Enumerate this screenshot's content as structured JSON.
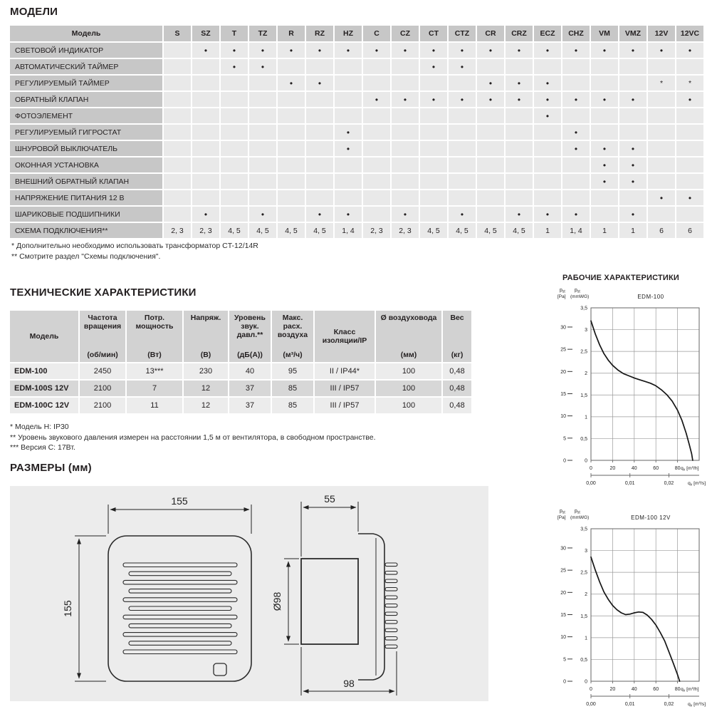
{
  "models_section": {
    "heading": "МОДЕЛИ",
    "footnotes": [
      "* Дополнительно необходимо использовать трансформатор CT-12/14R",
      "** Смотрите раздел \"Схемы подключения\"."
    ]
  },
  "models_table": {
    "header": [
      "Модель",
      "S",
      "SZ",
      "T",
      "TZ",
      "R",
      "RZ",
      "HZ",
      "C",
      "CZ",
      "CT",
      "CTZ",
      "CR",
      "CRZ",
      "ECZ",
      "CHZ",
      "VM",
      "VMZ",
      "12V",
      "12VC"
    ],
    "rows": [
      {
        "label": "СВЕТОВОЙ ИНДИКАТОР",
        "cells": [
          "",
          "•",
          "•",
          "•",
          "•",
          "•",
          "•",
          "•",
          "•",
          "•",
          "•",
          "•",
          "•",
          "•",
          "•",
          "•",
          "•",
          "•",
          "•"
        ]
      },
      {
        "label": "АВТОМАТИЧЕСКИЙ ТАЙМЕР",
        "cells": [
          "",
          "",
          "•",
          "•",
          "",
          "",
          "",
          "",
          "",
          "•",
          "•",
          "",
          "",
          "",
          "",
          "",
          "",
          "",
          ""
        ]
      },
      {
        "label": "РЕГУЛИРУЕМЫЙ ТАЙМЕР",
        "cells": [
          "",
          "",
          "",
          "",
          "•",
          "•",
          "",
          "",
          "",
          "",
          "",
          "•",
          "•",
          "•",
          "",
          "",
          "",
          "*",
          "*"
        ]
      },
      {
        "label": "ОБРАТНЫЙ КЛАПАН",
        "cells": [
          "",
          "",
          "",
          "",
          "",
          "",
          "",
          "•",
          "•",
          "•",
          "•",
          "•",
          "•",
          "•",
          "•",
          "•",
          "•",
          "",
          "•"
        ]
      },
      {
        "label": "ФОТОЭЛЕМЕНТ",
        "cells": [
          "",
          "",
          "",
          "",
          "",
          "",
          "",
          "",
          "",
          "",
          "",
          "",
          "",
          "•",
          "",
          "",
          "",
          "",
          ""
        ]
      },
      {
        "label": "РЕГУЛИРУЕМЫЙ ГИГРОСТАТ",
        "cells": [
          "",
          "",
          "",
          "",
          "",
          "",
          "•",
          "",
          "",
          "",
          "",
          "",
          "",
          "",
          "•",
          "",
          "",
          "",
          ""
        ]
      },
      {
        "label": "ШНУРОВОЙ ВЫКЛЮЧАТЕЛЬ",
        "cells": [
          "",
          "",
          "",
          "",
          "",
          "",
          "•",
          "",
          "",
          "",
          "",
          "",
          "",
          "",
          "•",
          "•",
          "•",
          "",
          ""
        ]
      },
      {
        "label": "ОКОННАЯ УСТАНОВКА",
        "cells": [
          "",
          "",
          "",
          "",
          "",
          "",
          "",
          "",
          "",
          "",
          "",
          "",
          "",
          "",
          "",
          "•",
          "•",
          "",
          ""
        ]
      },
      {
        "label": "ВНЕШНИЙ ОБРАТНЫЙ КЛАПАН",
        "cells": [
          "",
          "",
          "",
          "",
          "",
          "",
          "",
          "",
          "",
          "",
          "",
          "",
          "",
          "",
          "",
          "•",
          "•",
          "",
          ""
        ]
      },
      {
        "label": "НАПРЯЖЕНИЕ ПИТАНИЯ 12 В",
        "cells": [
          "",
          "",
          "",
          "",
          "",
          "",
          "",
          "",
          "",
          "",
          "",
          "",
          "",
          "",
          "",
          "",
          "",
          "•",
          "•"
        ]
      },
      {
        "label": "ШАРИКОВЫЕ ПОДШИПНИКИ",
        "cells": [
          "",
          "•",
          "",
          "•",
          "",
          "•",
          "•",
          "",
          "•",
          "",
          "•",
          "",
          "•",
          "•",
          "•",
          "",
          "•",
          "",
          ""
        ]
      },
      {
        "label": "СХЕМА ПОДКЛЮЧЕНИЯ**",
        "cells": [
          "2, 3",
          "2, 3",
          "4, 5",
          "4, 5",
          "4, 5",
          "4, 5",
          "1, 4",
          "2, 3",
          "2, 3",
          "4, 5",
          "4, 5",
          "4, 5",
          "4, 5",
          "1",
          "1, 4",
          "1",
          "1",
          "6",
          "6"
        ]
      }
    ]
  },
  "tech_section": {
    "heading": "ТЕХНИЧЕСКИЕ ХАРАКТЕРИСТИКИ",
    "footnotes": [
      "* Модель Н: IP30",
      "** Уровень звукового давления измерен на расстоянии 1,5 м от вентилятора, в свободном пространстве.",
      "*** Версия С: 17Вт."
    ]
  },
  "tech_table": {
    "columns": [
      {
        "title": "Модель",
        "unit": ""
      },
      {
        "title": "Частота вращения",
        "unit": "(об/мин)"
      },
      {
        "title": "Потр. мощность",
        "unit": "(Вт)"
      },
      {
        "title": "Напряж.",
        "unit": "(В)"
      },
      {
        "title": "Уровень звук. давл.**",
        "unit": "(дБ(А))"
      },
      {
        "title": "Макс. расх. воздуха",
        "unit": "(м³/ч)"
      },
      {
        "title": "Класс изоляции/IP",
        "unit": ""
      },
      {
        "title": "Ø воздуховода",
        "unit": "(мм)"
      },
      {
        "title": "Вес",
        "unit": "(кг)"
      }
    ],
    "rows": [
      {
        "model": "EDM-100",
        "values": [
          "2450",
          "13***",
          "230",
          "40",
          "95",
          "II / IP44*",
          "100",
          "0,48"
        ]
      },
      {
        "model": "EDM-100S 12V",
        "values": [
          "2100",
          "7",
          "12",
          "37",
          "85",
          "III / IP57",
          "100",
          "0,48"
        ]
      },
      {
        "model": "EDM-100C 12V",
        "values": [
          "2100",
          "11",
          "12",
          "37",
          "85",
          "III / IP57",
          "100",
          "0,48"
        ]
      }
    ]
  },
  "dimensions": {
    "heading": "РАЗМЕРЫ (мм)",
    "front_width": "155",
    "front_height": "155",
    "panel_depth": "55",
    "duct_diameter": "Ø98",
    "total_depth": "98"
  },
  "performance": {
    "heading": "РАБОЧИЕ ХАРАКТЕРИСТИКИ"
  },
  "chart_data": [
    {
      "type": "line",
      "title": "EDM-100",
      "y_pa_label": {
        "base": "p",
        "sub": "st",
        "unit": "[Pa]"
      },
      "y_mm_label": {
        "base": "p",
        "sub": "st",
        "unit": "(mmWG)"
      },
      "x_label": {
        "base": "q",
        "sub": "v",
        "unit": "[m³/h]"
      },
      "x2_label": {
        "base": "q",
        "sub": "v",
        "unit": "[m³/s]"
      },
      "pa_ticks": [
        0,
        5,
        10,
        15,
        20,
        25,
        30
      ],
      "mmwg_ticks": [
        "0",
        "0,5",
        "1",
        "1,5",
        "2",
        "2,5",
        "3",
        "3,5"
      ],
      "x_ticks": [
        0,
        20,
        40,
        60,
        80
      ],
      "x2_ticks": [
        {
          "x": 0,
          "label": "0,00"
        },
        {
          "x": 36,
          "label": "0,01"
        },
        {
          "x": 72,
          "label": "0,02"
        }
      ],
      "x_max": 100,
      "y_max": 3.5,
      "grid": true,
      "curve_mmwg": [
        [
          0,
          3.2
        ],
        [
          4,
          2.9
        ],
        [
          8,
          2.65
        ],
        [
          12,
          2.45
        ],
        [
          16,
          2.3
        ],
        [
          20,
          2.18
        ],
        [
          25,
          2.07
        ],
        [
          30,
          1.99
        ],
        [
          35,
          1.94
        ],
        [
          40,
          1.89
        ],
        [
          45,
          1.85
        ],
        [
          50,
          1.81
        ],
        [
          55,
          1.77
        ],
        [
          60,
          1.71
        ],
        [
          65,
          1.62
        ],
        [
          70,
          1.51
        ],
        [
          75,
          1.36
        ],
        [
          80,
          1.15
        ],
        [
          84,
          0.92
        ],
        [
          88,
          0.62
        ],
        [
          91,
          0.35
        ],
        [
          93,
          0.15
        ],
        [
          94,
          0
        ]
      ]
    },
    {
      "type": "line",
      "title": "EDM-100 12V",
      "y_pa_label": {
        "base": "p",
        "sub": "st",
        "unit": "[Pa]"
      },
      "y_mm_label": {
        "base": "p",
        "sub": "st",
        "unit": "(mmWG)"
      },
      "x_label": {
        "base": "q",
        "sub": "v",
        "unit": "[m³/h]"
      },
      "x2_label": {
        "base": "q",
        "sub": "v",
        "unit": "[m³/s]"
      },
      "pa_ticks": [
        0,
        5,
        10,
        15,
        20,
        25,
        30
      ],
      "mmwg_ticks": [
        "0",
        "0,5",
        "1",
        "1,5",
        "2",
        "2,5",
        "3",
        "3,5"
      ],
      "x_ticks": [
        0,
        20,
        40,
        60,
        80
      ],
      "x2_ticks": [
        {
          "x": 0,
          "label": "0,00"
        },
        {
          "x": 36,
          "label": "0,01"
        },
        {
          "x": 72,
          "label": "0,02"
        }
      ],
      "x_max": 100,
      "y_max": 3.5,
      "grid": true,
      "curve_mmwg": [
        [
          0,
          2.85
        ],
        [
          4,
          2.55
        ],
        [
          8,
          2.28
        ],
        [
          12,
          2.05
        ],
        [
          16,
          1.88
        ],
        [
          20,
          1.74
        ],
        [
          24,
          1.64
        ],
        [
          28,
          1.57
        ],
        [
          32,
          1.53
        ],
        [
          36,
          1.54
        ],
        [
          40,
          1.57
        ],
        [
          44,
          1.59
        ],
        [
          48,
          1.58
        ],
        [
          52,
          1.52
        ],
        [
          56,
          1.42
        ],
        [
          60,
          1.29
        ],
        [
          64,
          1.12
        ],
        [
          68,
          0.93
        ],
        [
          72,
          0.68
        ],
        [
          76,
          0.42
        ],
        [
          80,
          0.15
        ],
        [
          82,
          0
        ]
      ]
    }
  ]
}
